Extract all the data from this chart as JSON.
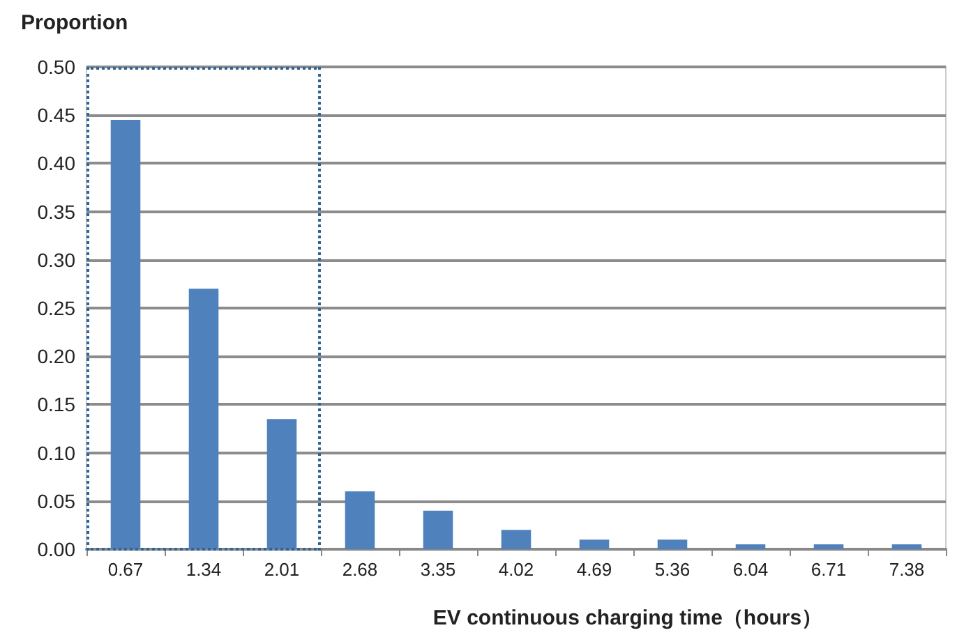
{
  "chart_data": {
    "type": "bar",
    "ylabel": "Proportion",
    "xlabel": "EV continuous charging time（hours）",
    "categories": [
      "0.67",
      "1.34",
      "2.01",
      "2.68",
      "3.35",
      "4.02",
      "4.69",
      "5.36",
      "6.04",
      "6.71",
      "7.38"
    ],
    "values": [
      0.445,
      0.27,
      0.135,
      0.06,
      0.04,
      0.02,
      0.01,
      0.01,
      0.005,
      0.005,
      0.005
    ],
    "color": "#4f81bd",
    "ylim": [
      0,
      0.5
    ],
    "yticks": [
      {
        "value": 0,
        "label": "0.00"
      },
      {
        "value": 0.05,
        "label": "0.05"
      },
      {
        "value": 0.1,
        "label": "0.10"
      },
      {
        "value": 0.15,
        "label": "0.15"
      },
      {
        "value": 0.2,
        "label": "0.20"
      },
      {
        "value": 0.25,
        "label": "0.25"
      },
      {
        "value": 0.3,
        "label": "0.30"
      },
      {
        "value": 0.35,
        "label": "0.35"
      },
      {
        "value": 0.4,
        "label": "0.40"
      },
      {
        "value": 0.45,
        "label": "0.45"
      },
      {
        "value": 0.5,
        "label": "0.50"
      }
    ],
    "grid": "y"
  }
}
